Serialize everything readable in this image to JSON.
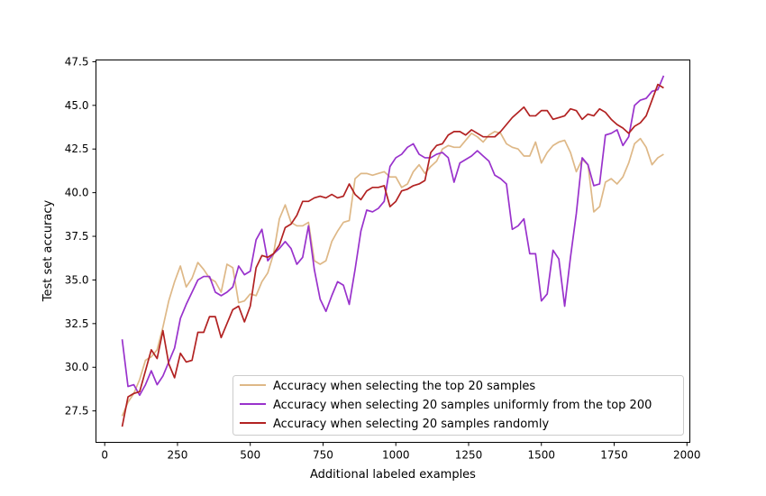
{
  "chart_data": {
    "type": "line",
    "xlabel": "Additional labeled examples",
    "ylabel": "Test set accuracy",
    "xlim": [
      -30,
      2010
    ],
    "ylim": [
      25.7,
      47.6
    ],
    "xticks": [
      0,
      250,
      500,
      750,
      1000,
      1250,
      1500,
      1750,
      2000
    ],
    "xtick_labels": [
      "0",
      "250",
      "500",
      "750",
      "1000",
      "1250",
      "1500",
      "1750",
      "2000"
    ],
    "yticks": [
      27.5,
      30.0,
      32.5,
      35.0,
      37.5,
      40.0,
      42.5,
      45.0,
      47.5
    ],
    "ytick_labels": [
      "27.5",
      "30.0",
      "32.5",
      "35.0",
      "37.5",
      "40.0",
      "42.5",
      "45.0",
      "47.5"
    ],
    "grid": false,
    "legend_position": "lower-right",
    "x": [
      60,
      80,
      100,
      120,
      140,
      160,
      180,
      200,
      220,
      240,
      260,
      280,
      300,
      320,
      340,
      360,
      380,
      400,
      420,
      440,
      460,
      480,
      500,
      520,
      540,
      560,
      580,
      600,
      620,
      640,
      660,
      680,
      700,
      720,
      740,
      760,
      780,
      800,
      820,
      840,
      860,
      880,
      900,
      920,
      940,
      960,
      980,
      1000,
      1020,
      1040,
      1060,
      1080,
      1100,
      1120,
      1140,
      1160,
      1180,
      1200,
      1220,
      1240,
      1260,
      1280,
      1300,
      1320,
      1340,
      1360,
      1380,
      1400,
      1420,
      1440,
      1460,
      1480,
      1500,
      1520,
      1540,
      1560,
      1580,
      1600,
      1620,
      1640,
      1660,
      1680,
      1700,
      1720,
      1740,
      1760,
      1780,
      1800,
      1820,
      1840,
      1860,
      1880,
      1900,
      1920
    ],
    "series": [
      {
        "name": "Accuracy when selecting the top 20 samples",
        "color": "#deb887",
        "values": [
          27.2,
          28.0,
          28.5,
          29.3,
          30.4,
          30.6,
          31.0,
          32.3,
          33.8,
          34.9,
          35.8,
          34.6,
          35.1,
          36.0,
          35.6,
          35.1,
          34.9,
          34.3,
          35.9,
          35.7,
          33.7,
          33.8,
          34.2,
          34.1,
          34.9,
          35.4,
          36.5,
          38.5,
          39.3,
          38.3,
          38.1,
          38.1,
          38.3,
          36.1,
          35.9,
          36.1,
          37.2,
          37.8,
          38.3,
          38.4,
          40.8,
          41.1,
          41.1,
          41.0,
          41.1,
          41.2,
          40.9,
          40.9,
          40.3,
          40.5,
          41.2,
          41.6,
          41.1,
          41.5,
          41.8,
          42.5,
          42.7,
          42.6,
          42.6,
          43.0,
          43.4,
          43.2,
          42.9,
          43.3,
          43.5,
          43.4,
          42.8,
          42.6,
          42.5,
          42.1,
          42.1,
          42.9,
          41.7,
          42.3,
          42.7,
          42.9,
          43.0,
          42.3,
          41.2,
          41.9,
          41.6,
          38.9,
          39.2,
          40.6,
          40.8,
          40.5,
          40.9,
          41.7,
          42.8,
          43.1,
          42.6,
          41.6,
          42.0,
          42.2
        ]
      },
      {
        "name": "Accuracy when selecting 20 samples uniformly from the top 200",
        "color": "#9932cc",
        "values": [
          31.6,
          28.9,
          29.0,
          28.4,
          29.0,
          29.8,
          29.0,
          29.5,
          30.3,
          31.1,
          32.8,
          33.6,
          34.3,
          35.0,
          35.2,
          35.2,
          34.3,
          34.1,
          34.3,
          34.6,
          35.8,
          35.3,
          35.5,
          37.3,
          37.9,
          36.1,
          36.5,
          36.8,
          37.2,
          36.8,
          35.9,
          36.3,
          38.1,
          35.6,
          33.9,
          33.2,
          34.1,
          34.9,
          34.7,
          33.6,
          35.6,
          37.8,
          39.0,
          38.9,
          39.1,
          39.5,
          41.5,
          42.0,
          42.2,
          42.6,
          42.8,
          42.2,
          42.0,
          42.0,
          42.2,
          42.3,
          42.0,
          40.6,
          41.7,
          41.9,
          42.1,
          42.4,
          42.1,
          41.8,
          41.0,
          40.8,
          40.5,
          37.9,
          38.1,
          38.5,
          36.5,
          36.5,
          33.8,
          34.2,
          36.7,
          36.2,
          33.5,
          36.3,
          38.8,
          42.0,
          41.6,
          40.4,
          40.5,
          43.3,
          43.4,
          43.6,
          42.7,
          43.2,
          45.0,
          45.3,
          45.4,
          45.8,
          45.9,
          46.7
        ]
      },
      {
        "name": "Accuracy when selecting 20 samples randomly",
        "color": "#b22222",
        "values": [
          26.6,
          28.3,
          28.5,
          28.6,
          29.8,
          31.0,
          30.5,
          32.1,
          30.2,
          29.4,
          30.8,
          30.3,
          30.4,
          32.0,
          32.0,
          32.9,
          32.9,
          31.7,
          32.5,
          33.3,
          33.5,
          32.6,
          33.5,
          35.7,
          36.4,
          36.3,
          36.5,
          37.0,
          38.0,
          38.2,
          38.7,
          39.5,
          39.5,
          39.7,
          39.8,
          39.7,
          39.9,
          39.7,
          39.8,
          40.5,
          39.9,
          39.6,
          40.1,
          40.3,
          40.3,
          40.4,
          39.2,
          39.5,
          40.1,
          40.2,
          40.4,
          40.5,
          40.7,
          42.3,
          42.7,
          42.8,
          43.3,
          43.5,
          43.5,
          43.3,
          43.6,
          43.4,
          43.2,
          43.2,
          43.2,
          43.5,
          43.9,
          44.3,
          44.6,
          44.9,
          44.4,
          44.4,
          44.7,
          44.7,
          44.2,
          44.3,
          44.4,
          44.8,
          44.7,
          44.2,
          44.5,
          44.4,
          44.8,
          44.6,
          44.2,
          43.9,
          43.7,
          43.4,
          43.8,
          44.0,
          44.4,
          45.3,
          46.2,
          46.0
        ]
      }
    ]
  }
}
